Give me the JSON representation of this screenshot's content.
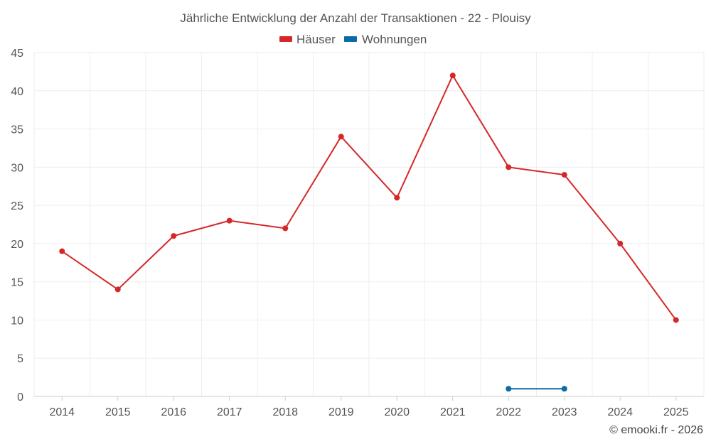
{
  "chart_data": {
    "type": "line",
    "title": "Jährliche Entwicklung der Anzahl der Transaktionen - 22 - Plouisy",
    "xlabel": "",
    "ylabel": "",
    "categories": [
      "2014",
      "2015",
      "2016",
      "2017",
      "2018",
      "2019",
      "2020",
      "2021",
      "2022",
      "2023",
      "2024",
      "2025"
    ],
    "ylim": [
      0,
      45
    ],
    "yticks": [
      0,
      5,
      10,
      15,
      20,
      25,
      30,
      35,
      40,
      45
    ],
    "grid": true,
    "legend_position": "top-center",
    "series": [
      {
        "name": "Häuser",
        "color": "#d62728",
        "values": [
          19,
          14,
          21,
          23,
          22,
          34,
          26,
          42,
          30,
          29,
          20,
          10
        ]
      },
      {
        "name": "Wohnungen",
        "color": "#0b6aa8",
        "values": [
          null,
          null,
          null,
          null,
          null,
          null,
          null,
          null,
          1,
          1,
          null,
          null
        ]
      }
    ]
  },
  "credit": "© emooki.fr - 2026"
}
